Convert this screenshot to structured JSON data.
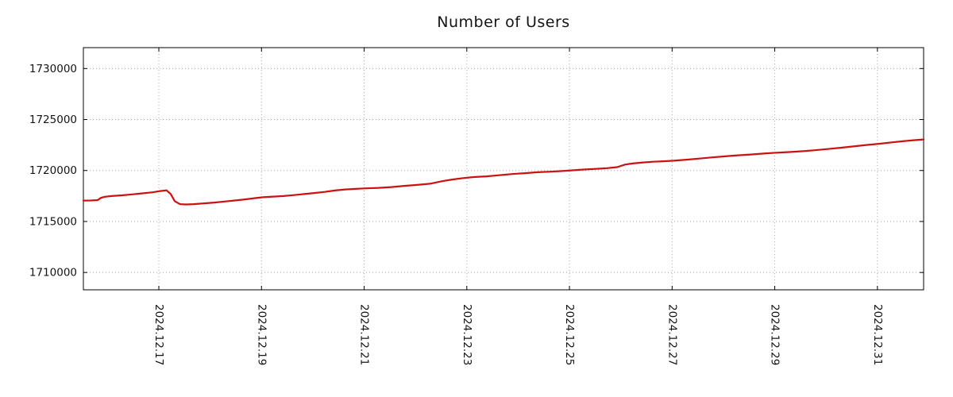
{
  "chart_data": {
    "type": "line",
    "title": "Number of Users",
    "xlabel": "",
    "ylabel": "",
    "xlim": [
      0,
      16.37
    ],
    "ylim": [
      1708300,
      1732050
    ],
    "grid": true,
    "legend": "none",
    "style": {
      "line_color": "#cc1111",
      "grid_color": "#a8a8a8",
      "axis_color": "#000000",
      "text_color": "#141414",
      "background": "#ffffff"
    },
    "x_ticks": [
      {
        "pos": 1.47,
        "label": "2024.12.17"
      },
      {
        "pos": 3.47,
        "label": "2024.12.19"
      },
      {
        "pos": 5.47,
        "label": "2024.12.21"
      },
      {
        "pos": 7.47,
        "label": "2024.12.23"
      },
      {
        "pos": 9.47,
        "label": "2024.12.25"
      },
      {
        "pos": 11.47,
        "label": "2024.12.27"
      },
      {
        "pos": 13.47,
        "label": "2024.12.29"
      },
      {
        "pos": 15.47,
        "label": "2024.12.31"
      }
    ],
    "y_ticks": [
      {
        "pos": 1710000,
        "label": "1710000"
      },
      {
        "pos": 1715000,
        "label": "1715000"
      },
      {
        "pos": 1720000,
        "label": "1720000"
      },
      {
        "pos": 1725000,
        "label": "1725000"
      },
      {
        "pos": 1730000,
        "label": "1730000"
      }
    ],
    "series": [
      {
        "name": "Number of Users",
        "color": "#cc1111",
        "points": [
          [
            0.0,
            1717050
          ],
          [
            0.15,
            1717060
          ],
          [
            0.28,
            1717100
          ],
          [
            0.34,
            1717320
          ],
          [
            0.42,
            1717430
          ],
          [
            0.55,
            1717500
          ],
          [
            0.75,
            1717570
          ],
          [
            0.95,
            1717660
          ],
          [
            1.15,
            1717760
          ],
          [
            1.35,
            1717860
          ],
          [
            1.5,
            1717990
          ],
          [
            1.62,
            1718060
          ],
          [
            1.7,
            1717700
          ],
          [
            1.78,
            1717000
          ],
          [
            1.88,
            1716700
          ],
          [
            2.0,
            1716670
          ],
          [
            2.15,
            1716700
          ],
          [
            2.35,
            1716780
          ],
          [
            2.55,
            1716860
          ],
          [
            2.75,
            1716960
          ],
          [
            2.95,
            1717060
          ],
          [
            3.15,
            1717170
          ],
          [
            3.35,
            1717290
          ],
          [
            3.5,
            1717380
          ],
          [
            3.7,
            1717440
          ],
          [
            3.9,
            1717500
          ],
          [
            4.1,
            1717590
          ],
          [
            4.3,
            1717690
          ],
          [
            4.5,
            1717790
          ],
          [
            4.7,
            1717900
          ],
          [
            4.9,
            1718040
          ],
          [
            5.1,
            1718140
          ],
          [
            5.3,
            1718200
          ],
          [
            5.5,
            1718250
          ],
          [
            5.75,
            1718300
          ],
          [
            6.0,
            1718380
          ],
          [
            6.25,
            1718490
          ],
          [
            6.5,
            1718590
          ],
          [
            6.75,
            1718700
          ],
          [
            7.0,
            1718960
          ],
          [
            7.2,
            1719120
          ],
          [
            7.4,
            1719260
          ],
          [
            7.6,
            1719360
          ],
          [
            7.85,
            1719430
          ],
          [
            8.1,
            1719540
          ],
          [
            8.35,
            1719650
          ],
          [
            8.6,
            1719740
          ],
          [
            8.85,
            1719830
          ],
          [
            9.1,
            1719890
          ],
          [
            9.3,
            1719940
          ],
          [
            9.5,
            1720010
          ],
          [
            9.75,
            1720100
          ],
          [
            10.0,
            1720170
          ],
          [
            10.2,
            1720230
          ],
          [
            10.4,
            1720330
          ],
          [
            10.55,
            1720580
          ],
          [
            10.7,
            1720690
          ],
          [
            10.9,
            1720790
          ],
          [
            11.1,
            1720860
          ],
          [
            11.3,
            1720910
          ],
          [
            11.5,
            1720960
          ],
          [
            11.75,
            1721060
          ],
          [
            12.0,
            1721170
          ],
          [
            12.25,
            1721290
          ],
          [
            12.5,
            1721390
          ],
          [
            12.75,
            1721490
          ],
          [
            13.0,
            1721570
          ],
          [
            13.25,
            1721660
          ],
          [
            13.5,
            1721750
          ],
          [
            13.75,
            1721810
          ],
          [
            14.0,
            1721890
          ],
          [
            14.25,
            1721990
          ],
          [
            14.5,
            1722110
          ],
          [
            14.75,
            1722230
          ],
          [
            15.0,
            1722360
          ],
          [
            15.25,
            1722500
          ],
          [
            15.5,
            1722620
          ],
          [
            15.75,
            1722760
          ],
          [
            16.0,
            1722890
          ],
          [
            16.2,
            1722980
          ],
          [
            16.37,
            1723050
          ]
        ]
      }
    ]
  }
}
